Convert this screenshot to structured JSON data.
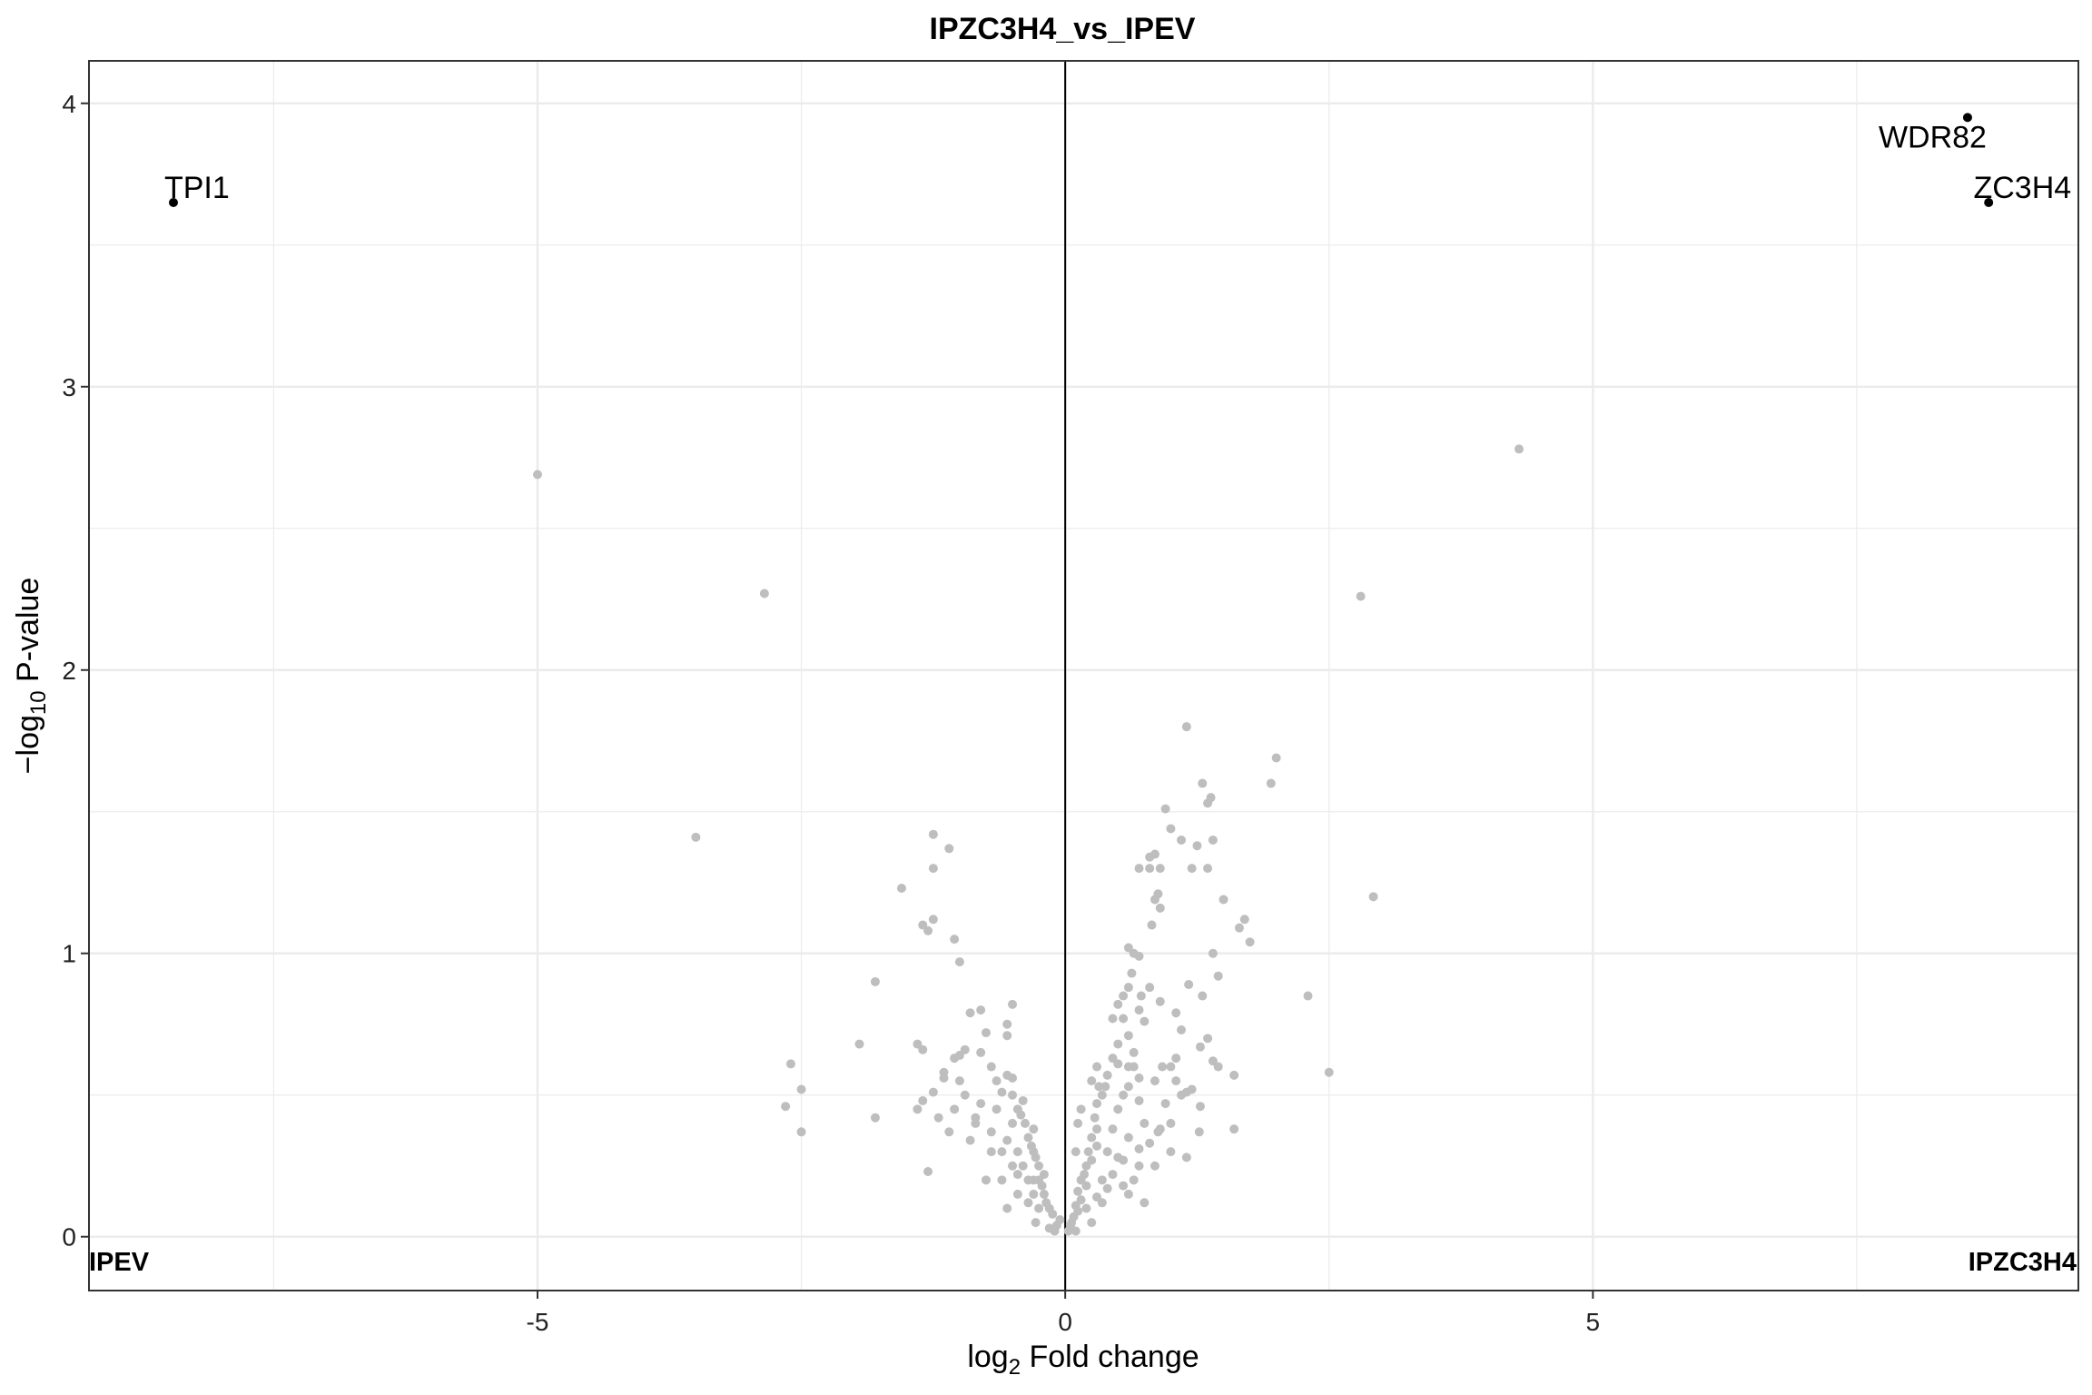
{
  "chart_data": {
    "type": "scatter",
    "title": "IPZC3H4_vs_IPEV",
    "xlabel": {
      "prefix": "log",
      "sub": "2",
      "suffix": " Fold change"
    },
    "ylabel": {
      "prefix": "−log",
      "sub": "10",
      "suffix": " P-value"
    },
    "xlim": [
      -9.25,
      9.6
    ],
    "ylim": [
      -0.19,
      4.15
    ],
    "xticks": [
      -5,
      0,
      5
    ],
    "xtick_labels": [
      "-5",
      "0",
      "5"
    ],
    "yticks": [
      0,
      1,
      2,
      3,
      4
    ],
    "ytick_labels": [
      "0",
      "1",
      "2",
      "3",
      "4"
    ],
    "grid": true,
    "reference_line_x": 0,
    "group_labels": {
      "left": "IPEV",
      "right": "IPZC3H4"
    },
    "colors": {
      "background_points": "#bebebe",
      "highlight_points": "#000000",
      "grid": "#ebebeb",
      "reference_line": "#000000"
    },
    "highlighted": [
      {
        "name": "WDR82",
        "x": 8.55,
        "y": 3.95
      },
      {
        "name": "ZC3H4",
        "x": 8.75,
        "y": 3.65
      },
      {
        "name": "TPI1",
        "x": -8.45,
        "y": 3.65
      }
    ],
    "points": [
      [
        -5.0,
        2.69
      ],
      [
        -2.85,
        2.27
      ],
      [
        -3.5,
        1.41
      ],
      [
        4.3,
        2.78
      ],
      [
        2.8,
        2.26
      ],
      [
        2.92,
        1.2
      ],
      [
        2.3,
        0.85
      ],
      [
        2.5,
        0.58
      ],
      [
        2.0,
        1.69
      ],
      [
        1.95,
        1.6
      ],
      [
        1.15,
        1.8
      ],
      [
        1.3,
        1.6
      ],
      [
        1.35,
        1.53
      ],
      [
        1.38,
        1.55
      ],
      [
        1.1,
        1.4
      ],
      [
        1.25,
        1.38
      ],
      [
        1.2,
        1.3
      ],
      [
        1.4,
        1.4
      ],
      [
        1.35,
        1.3
      ],
      [
        1.5,
        1.19
      ],
      [
        1.7,
        1.12
      ],
      [
        1.65,
        1.09
      ],
      [
        1.75,
        1.04
      ],
      [
        1.4,
        1.0
      ],
      [
        1.45,
        0.92
      ],
      [
        1.3,
        0.85
      ],
      [
        1.35,
        0.7
      ],
      [
        1.28,
        0.67
      ],
      [
        1.4,
        0.62
      ],
      [
        1.45,
        0.6
      ],
      [
        1.6,
        0.57
      ],
      [
        1.6,
        0.38
      ],
      [
        1.1,
        0.5
      ],
      [
        1.2,
        0.52
      ],
      [
        1.15,
        0.51
      ],
      [
        1.28,
        0.46
      ],
      [
        1.0,
        0.6
      ],
      [
        1.05,
        0.55
      ],
      [
        0.95,
        0.47
      ],
      [
        0.88,
        0.37
      ],
      [
        1.0,
        0.4
      ],
      [
        1.0,
        0.3
      ],
      [
        1.15,
        0.28
      ],
      [
        1.27,
        0.37
      ],
      [
        0.95,
        1.51
      ],
      [
        1.0,
        1.44
      ],
      [
        0.8,
        1.34
      ],
      [
        0.85,
        1.35
      ],
      [
        0.9,
        1.3
      ],
      [
        0.8,
        1.3
      ],
      [
        0.7,
        1.3
      ],
      [
        0.88,
        1.21
      ],
      [
        0.85,
        1.19
      ],
      [
        0.9,
        1.16
      ],
      [
        0.82,
        1.1
      ],
      [
        0.6,
        1.02
      ],
      [
        0.65,
        1.0
      ],
      [
        0.7,
        0.99
      ],
      [
        0.63,
        0.93
      ],
      [
        0.6,
        0.88
      ],
      [
        0.55,
        0.85
      ],
      [
        0.55,
        0.77
      ],
      [
        0.6,
        0.71
      ],
      [
        0.5,
        0.68
      ],
      [
        0.45,
        0.63
      ],
      [
        0.5,
        0.61
      ],
      [
        0.4,
        0.57
      ],
      [
        0.38,
        0.53
      ],
      [
        0.35,
        0.5
      ],
      [
        0.3,
        0.47
      ],
      [
        0.28,
        0.42
      ],
      [
        0.3,
        0.38
      ],
      [
        0.25,
        0.35
      ],
      [
        0.3,
        0.32
      ],
      [
        0.22,
        0.3
      ],
      [
        0.25,
        0.27
      ],
      [
        0.2,
        0.25
      ],
      [
        0.18,
        0.22
      ],
      [
        0.15,
        0.2
      ],
      [
        0.2,
        0.18
      ],
      [
        0.12,
        0.16
      ],
      [
        0.15,
        0.13
      ],
      [
        0.1,
        0.11
      ],
      [
        0.12,
        0.09
      ],
      [
        0.08,
        0.07
      ],
      [
        0.06,
        0.05
      ],
      [
        0.05,
        0.04
      ],
      [
        0.03,
        0.02
      ],
      [
        0.1,
        0.02
      ],
      [
        0.2,
        0.1
      ],
      [
        0.25,
        0.05
      ],
      [
        0.3,
        0.14
      ],
      [
        0.35,
        0.2
      ],
      [
        0.4,
        0.3
      ],
      [
        0.45,
        0.38
      ],
      [
        0.5,
        0.45
      ],
      [
        0.55,
        0.5
      ],
      [
        0.6,
        0.53
      ],
      [
        0.65,
        0.6
      ],
      [
        0.7,
        0.56
      ],
      [
        0.7,
        0.48
      ],
      [
        0.75,
        0.4
      ],
      [
        0.6,
        0.35
      ],
      [
        0.5,
        0.28
      ],
      [
        0.45,
        0.22
      ],
      [
        0.4,
        0.17
      ],
      [
        0.35,
        0.12
      ],
      [
        0.55,
        0.18
      ],
      [
        0.65,
        0.2
      ],
      [
        0.55,
        0.27
      ],
      [
        0.7,
        0.31
      ],
      [
        0.8,
        0.33
      ],
      [
        0.9,
        0.38
      ],
      [
        0.85,
        0.25
      ],
      [
        0.7,
        0.25
      ],
      [
        0.6,
        0.15
      ],
      [
        0.75,
        0.12
      ],
      [
        0.6,
        0.6
      ],
      [
        0.65,
        0.65
      ],
      [
        0.75,
        0.76
      ],
      [
        0.9,
        0.83
      ],
      [
        0.8,
        0.88
      ],
      [
        1.05,
        0.79
      ],
      [
        1.1,
        0.73
      ],
      [
        1.17,
        0.89
      ],
      [
        0.7,
        0.8
      ],
      [
        0.72,
        0.85
      ],
      [
        0.85,
        0.55
      ],
      [
        0.92,
        0.6
      ],
      [
        1.05,
        0.63
      ],
      [
        0.25,
        0.55
      ],
      [
        0.3,
        0.6
      ],
      [
        0.32,
        0.53
      ],
      [
        0.15,
        0.45
      ],
      [
        0.1,
        0.3
      ],
      [
        0.12,
        0.4
      ],
      [
        0.45,
        0.77
      ],
      [
        0.5,
        0.82
      ],
      [
        -0.1,
        0.02
      ],
      [
        -0.08,
        0.04
      ],
      [
        -0.05,
        0.06
      ],
      [
        -0.12,
        0.08
      ],
      [
        -0.15,
        0.1
      ],
      [
        -0.18,
        0.12
      ],
      [
        -0.2,
        0.15
      ],
      [
        -0.22,
        0.18
      ],
      [
        -0.25,
        0.2
      ],
      [
        -0.2,
        0.22
      ],
      [
        -0.25,
        0.25
      ],
      [
        -0.28,
        0.28
      ],
      [
        -0.3,
        0.3
      ],
      [
        -0.32,
        0.32
      ],
      [
        -0.35,
        0.35
      ],
      [
        -0.3,
        0.38
      ],
      [
        -0.38,
        0.4
      ],
      [
        -0.42,
        0.43
      ],
      [
        -0.45,
        0.45
      ],
      [
        -0.4,
        0.48
      ],
      [
        -0.5,
        0.5
      ],
      [
        -0.5,
        0.56
      ],
      [
        -0.55,
        0.57
      ],
      [
        -0.6,
        0.51
      ],
      [
        -0.65,
        0.55
      ],
      [
        -0.7,
        0.6
      ],
      [
        -0.55,
        0.75
      ],
      [
        -0.5,
        0.82
      ],
      [
        -0.55,
        0.71
      ],
      [
        -0.8,
        0.8
      ],
      [
        -0.9,
        0.79
      ],
      [
        -0.95,
        0.66
      ],
      [
        -1.0,
        0.64
      ],
      [
        -0.75,
        0.72
      ],
      [
        -0.65,
        0.45
      ],
      [
        -0.7,
        0.37
      ],
      [
        -0.7,
        0.3
      ],
      [
        -0.6,
        0.3
      ],
      [
        -0.5,
        0.4
      ],
      [
        -0.45,
        0.3
      ],
      [
        -0.35,
        0.2
      ],
      [
        -0.3,
        0.15
      ],
      [
        -0.4,
        0.25
      ],
      [
        -0.25,
        0.1
      ],
      [
        -0.28,
        0.05
      ],
      [
        -0.15,
        0.03
      ],
      [
        -0.3,
        0.2
      ],
      [
        -0.35,
        0.12
      ],
      [
        -0.45,
        0.22
      ],
      [
        -0.55,
        0.34
      ],
      [
        -0.45,
        0.15
      ],
      [
        -0.5,
        0.25
      ],
      [
        -0.6,
        0.2
      ],
      [
        -0.55,
        0.1
      ],
      [
        -0.8,
        0.47
      ],
      [
        -0.85,
        0.42
      ],
      [
        -0.9,
        0.34
      ],
      [
        -0.95,
        0.5
      ],
      [
        -1.05,
        0.45
      ],
      [
        -1.1,
        0.37
      ],
      [
        -1.35,
        0.48
      ],
      [
        -1.25,
        0.51
      ],
      [
        -1.15,
        0.56
      ],
      [
        -1.4,
        0.45
      ],
      [
        -1.2,
        0.42
      ],
      [
        -1.3,
        0.23
      ],
      [
        -1.15,
        0.58
      ],
      [
        -1.4,
        0.68
      ],
      [
        -1.35,
        0.66
      ],
      [
        -1.1,
        1.37
      ],
      [
        -1.05,
        1.05
      ],
      [
        -1.0,
        0.97
      ],
      [
        -1.05,
        0.63
      ],
      [
        -1.0,
        0.55
      ],
      [
        -1.25,
        1.42
      ],
      [
        -1.25,
        1.3
      ],
      [
        -1.25,
        1.12
      ],
      [
        -1.35,
        1.1
      ],
      [
        -1.3,
        1.08
      ],
      [
        -1.55,
        1.23
      ],
      [
        -1.8,
        0.9
      ],
      [
        -1.8,
        0.42
      ],
      [
        -1.95,
        0.68
      ],
      [
        -2.5,
        0.52
      ],
      [
        -2.6,
        0.61
      ],
      [
        -2.65,
        0.46
      ],
      [
        -2.5,
        0.37
      ],
      [
        -0.75,
        0.2
      ],
      [
        -0.8,
        0.65
      ],
      [
        -0.85,
        0.4
      ]
    ]
  }
}
